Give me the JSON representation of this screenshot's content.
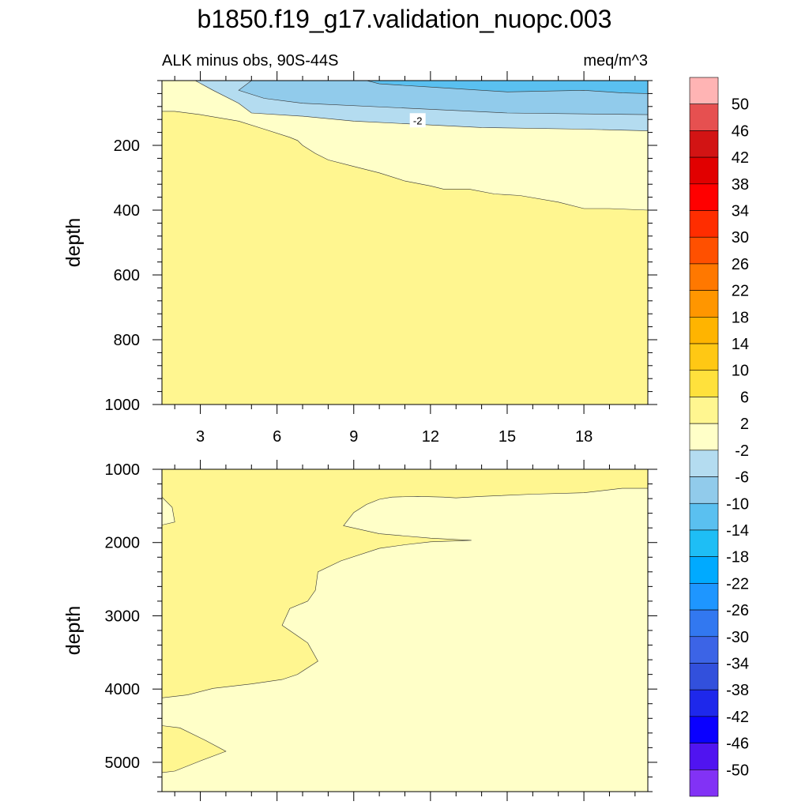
{
  "chart_data": {
    "type": "contour",
    "title": "b1850.f19_g17.validation_nuopc.003",
    "subtitle_left": "ALK minus obs, 90S-44S",
    "subtitle_right": "meq/m^3",
    "x_range": [
      1.5,
      20.5
    ],
    "x_ticks": [
      3,
      6,
      9,
      12,
      15,
      18
    ],
    "panels": [
      {
        "id": "upper",
        "ylabel": "depth",
        "ylim": [
          0,
          1000
        ],
        "y_ticks": [
          200,
          400,
          600,
          800,
          1000
        ],
        "contour_labels": [
          {
            "text": "-2",
            "x": 11.5,
            "y": 125
          }
        ],
        "regions": [
          {
            "level": "2 to 6",
            "color": "#fff690",
            "points": [
              [
                1.5,
                1000
              ],
              [
                20.5,
                1000
              ],
              [
                20.5,
                0
              ],
              [
                1.5,
                0
              ]
            ]
          },
          {
            "level": "-2 to 2",
            "color": "#ffffc8",
            "points": [
              [
                1.5,
                0
              ],
              [
                20.5,
                0
              ],
              [
                20.5,
                400
              ],
              [
                19,
                395
              ],
              [
                18,
                395
              ],
              [
                17,
                375
              ],
              [
                15.5,
                355
              ],
              [
                14.5,
                350
              ],
              [
                13.5,
                335
              ],
              [
                12.5,
                335
              ],
              [
                12,
                325
              ],
              [
                11,
                310
              ],
              [
                10,
                285
              ],
              [
                9,
                265
              ],
              [
                8,
                245
              ],
              [
                7.5,
                225
              ],
              [
                7,
                200
              ],
              [
                6.8,
                185
              ],
              [
                6.5,
                175
              ],
              [
                5.5,
                150
              ],
              [
                4.5,
                125
              ],
              [
                3,
                105
              ],
              [
                2,
                95
              ],
              [
                1.5,
                95
              ]
            ]
          },
          {
            "level": "-6 to -2",
            "color": "#b4dcf0",
            "points": [
              [
                2.8,
                0
              ],
              [
                20.5,
                0
              ],
              [
                20.5,
                155
              ],
              [
                18,
                150
              ],
              [
                14,
                145
              ],
              [
                9,
                125
              ],
              [
                7,
                110
              ],
              [
                5,
                100
              ],
              [
                4.5,
                70
              ],
              [
                3.5,
                30
              ]
            ]
          },
          {
            "level": "-10 to -6",
            "color": "#91cbeb",
            "points": [
              [
                5,
                0
              ],
              [
                20.5,
                0
              ],
              [
                20.5,
                105
              ],
              [
                15,
                100
              ],
              [
                11,
                85
              ],
              [
                7,
                70
              ],
              [
                5.5,
                55
              ],
              [
                4.5,
                30
              ]
            ]
          },
          {
            "level": "-14 to -10",
            "color": "#5ac0f0",
            "points": [
              [
                9.5,
                0
              ],
              [
                20.5,
                0
              ],
              [
                20.5,
                40
              ],
              [
                19.5,
                38
              ],
              [
                18,
                30
              ],
              [
                15,
                35
              ],
              [
                12,
                20
              ],
              [
                10,
                10
              ]
            ]
          }
        ]
      },
      {
        "id": "lower",
        "ylabel": "depth",
        "ylim": [
          1000,
          5400
        ],
        "y_ticks": [
          1000,
          2000,
          3000,
          4000,
          5000
        ],
        "contour_labels": [],
        "regions": [
          {
            "level": "-2 to 2",
            "color": "#ffffc8",
            "points": [
              [
                1.5,
                1000
              ],
              [
                20.5,
                1000
              ],
              [
                20.5,
                5400
              ],
              [
                1.5,
                5400
              ]
            ]
          },
          {
            "level": "2 to 6",
            "color": "#fff690",
            "points": [
              [
                1.5,
                1000
              ],
              [
                20.5,
                1000
              ],
              [
                20.5,
                1260
              ],
              [
                19.5,
                1260
              ],
              [
                18,
                1320
              ],
              [
                16,
                1340
              ],
              [
                14,
                1370
              ],
              [
                13,
                1390
              ],
              [
                12.5,
                1380
              ],
              [
                11.5,
                1370
              ],
              [
                10.5,
                1380
              ],
              [
                10,
                1410
              ],
              [
                9.5,
                1480
              ],
              [
                9,
                1590
              ],
              [
                8.6,
                1770
              ],
              [
                10,
                1880
              ],
              [
                12,
                1940
              ],
              [
                13.6,
                1970
              ],
              [
                12,
                1990
              ],
              [
                11,
                2030
              ],
              [
                10,
                2080
              ],
              [
                8.5,
                2250
              ],
              [
                7.6,
                2400
              ],
              [
                7.5,
                2650
              ],
              [
                7.2,
                2800
              ],
              [
                6.5,
                2900
              ],
              [
                6.2,
                3130
              ],
              [
                7.2,
                3370
              ],
              [
                7.6,
                3620
              ],
              [
                6.8,
                3800
              ],
              [
                6.2,
                3870
              ],
              [
                5,
                3930
              ],
              [
                3.5,
                3990
              ],
              [
                2.5,
                4080
              ],
              [
                1.5,
                4120
              ]
            ]
          },
          {
            "level": "-2 to 2",
            "color": "#ffffc8",
            "points": [
              [
                1.5,
                1380
              ],
              [
                1.9,
                1520
              ],
              [
                2,
                1720
              ],
              [
                1.5,
                1760
              ]
            ]
          },
          {
            "level": "2 to 6",
            "color": "#fff690",
            "points": [
              [
                1.5,
                4500
              ],
              [
                2.2,
                4530
              ],
              [
                3.2,
                4700
              ],
              [
                4,
                4850
              ],
              [
                3,
                4980
              ],
              [
                2,
                5120
              ],
              [
                1.5,
                5140
              ]
            ]
          }
        ]
      }
    ],
    "colorbar": {
      "labels": [
        "50",
        "46",
        "42",
        "38",
        "34",
        "30",
        "26",
        "22",
        "18",
        "14",
        "10",
        "6",
        "2",
        "-2",
        "-6",
        "-10",
        "-14",
        "-18",
        "-22",
        "-26",
        "-30",
        "-34",
        "-38",
        "-42",
        "-46",
        "-50"
      ],
      "colors": [
        "#ffb4b4",
        "#e65050",
        "#d21414",
        "#e10000",
        "#ff0000",
        "#ff2d00",
        "#ff5000",
        "#ff7800",
        "#ff9600",
        "#ffb400",
        "#ffc814",
        "#ffe13c",
        "#fff690",
        "#ffffc8",
        "#b4dcf0",
        "#91cbeb",
        "#5ac0f0",
        "#1ebef5",
        "#00aaff",
        "#1e96ff",
        "#3278f0",
        "#3c64e6",
        "#3250dc",
        "#1e28eb",
        "#0a00ff",
        "#5014f0",
        "#8232f5"
      ]
    }
  }
}
